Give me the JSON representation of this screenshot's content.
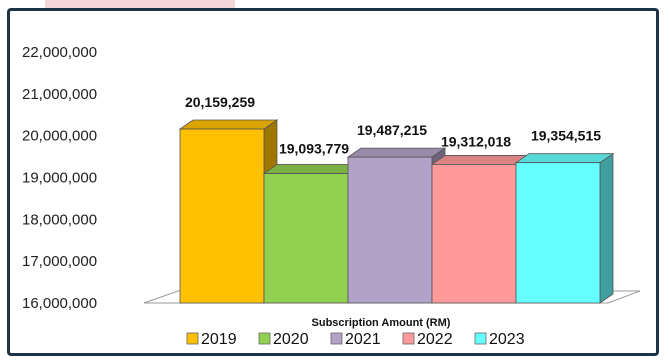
{
  "chart_data": {
    "type": "bar",
    "title": "",
    "xlabel": "Subscription Amount (RM)",
    "ylabel": "",
    "ylim": [
      16000000,
      22000000
    ],
    "yticks": [
      "22,000,000",
      "21,000,000",
      "20,000,000",
      "19,000,000",
      "18,000,000",
      "17,000,000",
      "16,000,000"
    ],
    "categories": [
      "2019",
      "2020",
      "2021",
      "2022",
      "2023"
    ],
    "values": [
      20159259,
      19093779,
      19487215,
      19312018,
      19354515
    ],
    "value_labels": [
      "20,159,259",
      "19,093,779",
      "19,487,215",
      "19,312,018",
      "19,354,515"
    ],
    "colors": [
      "#ffc000",
      "#92d050",
      "#b3a2c7",
      "#ff9a9a",
      "#66ffff"
    ],
    "legend_placement": "bottom",
    "grid": false,
    "style": "3d-column"
  }
}
